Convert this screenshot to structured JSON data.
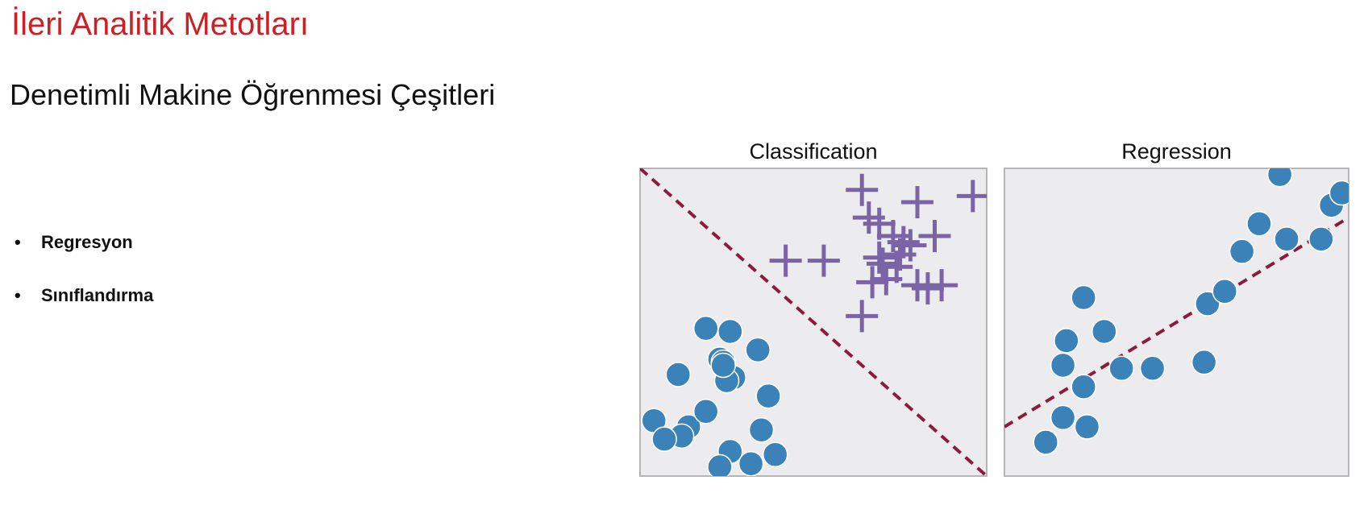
{
  "slide": {
    "title": "İleri Analitik Metotları",
    "subtitle": "Denetimli Makine Öğrenmesi Çeşitleri",
    "bullets": [
      "Regresyon",
      "Sınıflandırma"
    ]
  },
  "colors": {
    "title": "#cc1f26",
    "panel_bg": "#ececef",
    "panel_border": "#b5b5b8",
    "circle": "#3b82b8",
    "plus": "#7a64a6",
    "dashed_line": "#8e1a3c"
  },
  "chart_data": [
    {
      "type": "scatter",
      "title": "Classification",
      "xlim": [
        0,
        10
      ],
      "ylim": [
        0,
        10
      ],
      "grid": false,
      "series": [
        {
          "marker": "circle",
          "x": [
            1.9,
            2.6,
            2.3,
            2.4,
            3.4,
            1.1,
            2.7,
            2.5,
            0.4,
            1.4,
            1.2,
            1.9,
            3.7,
            3.5,
            3.9,
            2.6,
            0.7,
            3.2,
            2.3,
            2.4
          ],
          "y": [
            4.8,
            4.7,
            3.8,
            3.7,
            4.1,
            3.3,
            3.2,
            3.1,
            1.8,
            1.6,
            1.3,
            2.1,
            2.6,
            1.5,
            0.7,
            0.8,
            1.2,
            0.4,
            0.3,
            3.6
          ]
        },
        {
          "marker": "plus",
          "x": [
            6.4,
            8.0,
            9.6,
            6.6,
            6.9,
            7.3,
            8.5,
            7.8,
            7.5,
            4.2,
            5.3,
            7.4,
            6.7,
            7.1,
            8.0,
            8.7,
            8.3,
            7.6,
            6.4,
            6.9,
            7.0
          ],
          "y": [
            9.3,
            8.9,
            9.1,
            8.4,
            8.2,
            7.8,
            7.8,
            7.5,
            7.2,
            7.0,
            7.0,
            6.8,
            6.3,
            6.4,
            6.2,
            6.2,
            6.1,
            7.6,
            5.2,
            7.1,
            6.9
          ]
        }
      ],
      "boundary": {
        "x": [
          0,
          10
        ],
        "y": [
          10,
          0
        ]
      }
    },
    {
      "type": "scatter",
      "title": "Regression",
      "xlim": [
        0,
        10
      ],
      "ylim": [
        0,
        10
      ],
      "grid": false,
      "series": [
        {
          "marker": "circle",
          "x": [
            1.2,
            2.3,
            1.8,
            2.9,
            1.7,
            3.4,
            4.3,
            2.3,
            1.7,
            2.4,
            1.2,
            5.8,
            5.9,
            6.4,
            6.9,
            7.4,
            8.2,
            8.0,
            9.2,
            9.5,
            9.8
          ],
          "y": [
            1.1,
            5.8,
            4.4,
            4.7,
            3.6,
            3.5,
            3.5,
            2.9,
            1.9,
            1.6,
            1.1,
            3.7,
            5.6,
            6.0,
            7.3,
            8.2,
            7.7,
            9.8,
            7.7,
            8.8,
            9.2
          ]
        }
      ],
      "fit_line": {
        "x": [
          0,
          10
        ],
        "y": [
          1.6,
          8.4
        ]
      }
    }
  ]
}
